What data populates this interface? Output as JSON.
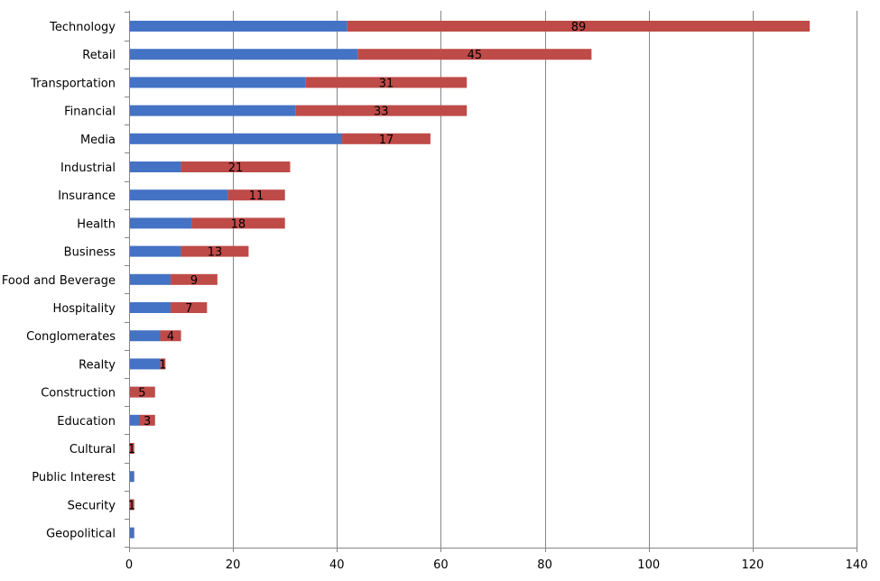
{
  "chart_data": {
    "type": "bar",
    "orientation": "horizontal",
    "stacked": true,
    "categories": [
      "Technology",
      "Retail",
      "Transportation",
      "Financial",
      "Media",
      "Industrial",
      "Insurance",
      "Health",
      "Business",
      "Food and Beverage",
      "Hospitality",
      "Conglomerates",
      "Realty",
      "Construction",
      "Education",
      "Cultural",
      "Public Interest",
      "Security",
      "Geopolitical"
    ],
    "series": [
      {
        "color": "#4472c4",
        "values": [
          42,
          44,
          34,
          32,
          41,
          10,
          19,
          12,
          10,
          8,
          8,
          6,
          6,
          0,
          2,
          0,
          1,
          0,
          1
        ],
        "labels": []
      },
      {
        "color": "#be4b48",
        "values": [
          89,
          45,
          31,
          33,
          17,
          21,
          11,
          18,
          13,
          9,
          7,
          4,
          1,
          5,
          3,
          1,
          0,
          1,
          0
        ],
        "labels": [
          "89",
          "45",
          "31",
          "33",
          "17",
          "21",
          "11",
          "18",
          "13",
          "9",
          "7",
          "4",
          "1",
          "5",
          "3",
          "1",
          "",
          "1",
          ""
        ]
      }
    ],
    "xlim": [
      0,
      140
    ],
    "xticks": [
      "0",
      "20",
      "40",
      "60",
      "80",
      "100",
      "120",
      "140"
    ],
    "grid": "vertical",
    "legend": "none",
    "title": "",
    "xlabel": "",
    "ylabel": ""
  }
}
